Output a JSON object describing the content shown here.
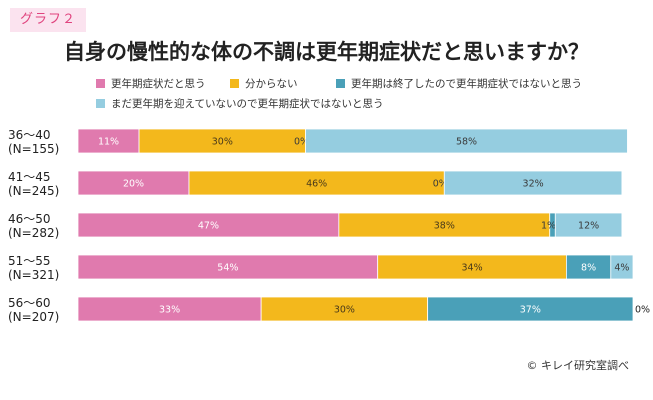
{
  "header": {
    "badge": "グラフ２",
    "title": "自身の慢性的な体の不調は更年期症状だと思いますか？"
  },
  "source": "© キレイ研究室調べ",
  "colors": {
    "badge_bg": "#fbe3ef",
    "badge_text": "#e0437e"
  },
  "chart_data": {
    "type": "bar",
    "orientation": "horizontal",
    "stacked": "100%",
    "title": "自身の慢性的な体の不調は更年期症状だと思いますか？",
    "xlim": [
      0,
      100
    ],
    "grid": false,
    "legend_position": "top",
    "categories": [
      [
        "36～40",
        "(N=155)"
      ],
      [
        "41～45",
        "(N=245)"
      ],
      [
        "46～50",
        "(N=282)"
      ],
      [
        "51～55",
        "(N=321)"
      ],
      [
        "56～60",
        "(N=207)"
      ]
    ],
    "series": [
      {
        "name": "更年期症状だと思う",
        "color": "#e07aae",
        "values": [
          11,
          20,
          47,
          54,
          33
        ],
        "labels": [
          "11%",
          "20%",
          "47%",
          "54%",
          "33%"
        ]
      },
      {
        "name": "分からない",
        "color": "#f3b81c",
        "values": [
          30,
          46,
          38,
          34,
          30
        ],
        "labels": [
          "30%",
          "46%",
          "38%",
          "34%",
          "30%"
        ]
      },
      {
        "name": "更年期は終了したので更年期症状ではないと思う",
        "color": "#4aa0b8",
        "values": [
          0,
          0,
          1,
          8,
          37
        ],
        "labels": [
          "0%",
          "0%",
          "1%",
          "8%",
          "37%"
        ]
      },
      {
        "name": "まだ更年期を迎えていないので更年期症状ではないと思う",
        "color": "#95cde0",
        "values": [
          58,
          32,
          12,
          4,
          0
        ],
        "labels": [
          "58%",
          "32%",
          "12%",
          "4%",
          "0%"
        ]
      }
    ]
  }
}
